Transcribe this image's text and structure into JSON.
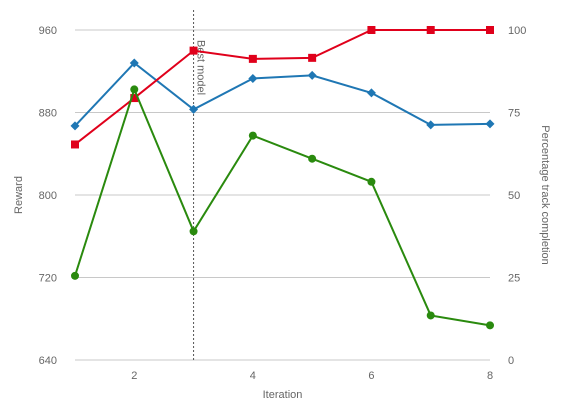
{
  "chart_data": {
    "type": "line",
    "xlabel": "Iteration",
    "ylabel_left": "Reward",
    "ylabel_right": "Percentage track completion",
    "x_ticks": [
      2,
      4,
      6,
      8
    ],
    "xlim": [
      1,
      8
    ],
    "y_left_ticks": [
      640,
      720,
      800,
      880,
      960
    ],
    "y_left_lim": [
      640,
      960
    ],
    "y_right_ticks": [
      0,
      25,
      50,
      75,
      100
    ],
    "y_right_lim": [
      0,
      100
    ],
    "grid": true,
    "annotation": {
      "label": "Best model",
      "x": 3
    },
    "series": [
      {
        "axis": "left",
        "color": "#1f77b4",
        "marker": "diamond",
        "x": [
          1,
          2,
          3,
          4,
          5,
          6,
          7,
          8
        ],
        "values": [
          867,
          928,
          883,
          913,
          916,
          899,
          868,
          869
        ]
      },
      {
        "axis": "left",
        "color": "#e0001b",
        "marker": "square",
        "x": [
          1,
          2,
          3,
          4,
          5,
          6,
          7,
          8
        ],
        "values": [
          849,
          894,
          940,
          932,
          933,
          960,
          960,
          960
        ]
      },
      {
        "axis": "right",
        "color": "#2a8a0e",
        "marker": "circle",
        "x": [
          1,
          2,
          3,
          4,
          5,
          6,
          7,
          8
        ],
        "values": [
          25.5,
          82,
          39,
          68,
          61,
          54,
          13.5,
          10.5
        ]
      }
    ]
  }
}
